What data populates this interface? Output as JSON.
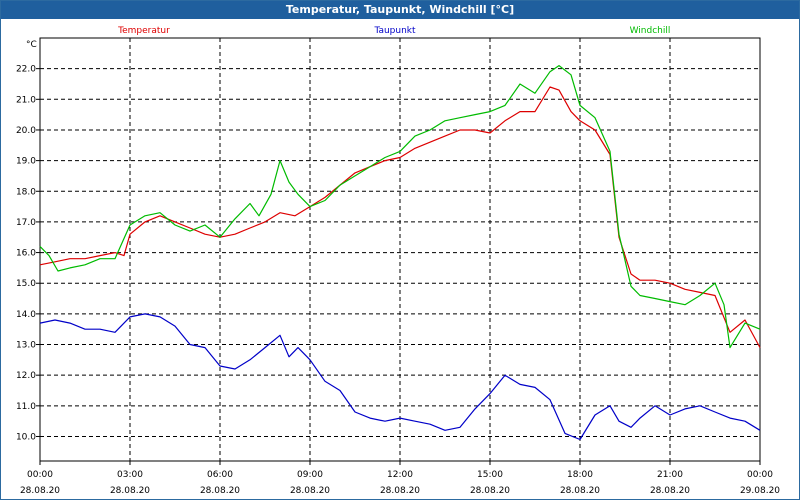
{
  "window": {
    "title": "Temperatur, Taupunkt, Windchill [°C]"
  },
  "chart_data": {
    "type": "line",
    "title": "Temperatur, Taupunkt, Windchill [°C]",
    "ylabel": "°C",
    "ylim": [
      9.2,
      23.0
    ],
    "y_ticks": [
      "10.0",
      "11.0",
      "12.0",
      "13.0",
      "14.0",
      "15.0",
      "16.0",
      "17.0",
      "18.0",
      "19.0",
      "20.0",
      "21.0",
      "22.0"
    ],
    "x_ticks": [
      {
        "time": "00:00",
        "date": "28.08.20"
      },
      {
        "time": "03:00",
        "date": "28.08.20"
      },
      {
        "time": "06:00",
        "date": "28.08.20"
      },
      {
        "time": "09:00",
        "date": "28.08.20"
      },
      {
        "time": "12:00",
        "date": "28.08.20"
      },
      {
        "time": "15:00",
        "date": "28.08.20"
      },
      {
        "time": "18:00",
        "date": "28.08.20"
      },
      {
        "time": "21:00",
        "date": "28.08.20"
      },
      {
        "time": "00:00",
        "date": "29.08.20"
      }
    ],
    "grid": true,
    "legend_position": "top",
    "series": [
      {
        "name": "Temperatur",
        "color": "#dd0000",
        "x": [
          0,
          0.5,
          1,
          1.5,
          2,
          2.5,
          2.8,
          3,
          3.5,
          4,
          4.5,
          5,
          5.5,
          6,
          6.5,
          7,
          7.5,
          8,
          8.5,
          9,
          9.5,
          10,
          10.5,
          11,
          11.5,
          12,
          12.5,
          13,
          13.5,
          14,
          14.5,
          15,
          15.5,
          16,
          16.5,
          17,
          17.3,
          17.7,
          18,
          18.5,
          19,
          19.3,
          19.7,
          20,
          20.5,
          21,
          21.5,
          22,
          22.5,
          23,
          23.5,
          24
        ],
        "values": [
          15.6,
          15.7,
          15.8,
          15.8,
          15.9,
          16.0,
          15.9,
          16.6,
          17.0,
          17.2,
          17.0,
          16.8,
          16.6,
          16.5,
          16.6,
          16.8,
          17.0,
          17.3,
          17.2,
          17.5,
          17.8,
          18.2,
          18.6,
          18.8,
          19.0,
          19.1,
          19.4,
          19.6,
          19.8,
          20.0,
          20.0,
          19.9,
          20.3,
          20.6,
          20.6,
          21.4,
          21.3,
          20.6,
          20.3,
          20.0,
          19.2,
          16.5,
          15.3,
          15.1,
          15.1,
          15.0,
          14.8,
          14.7,
          14.6,
          13.4,
          13.8,
          12.9
        ]
      },
      {
        "name": "Taupunkt",
        "color": "#0000c8",
        "x": [
          0,
          0.5,
          1,
          1.5,
          2,
          2.5,
          3,
          3.5,
          4,
          4.5,
          5,
          5.5,
          6,
          6.5,
          7,
          7.5,
          8,
          8.3,
          8.6,
          9,
          9.5,
          10,
          10.5,
          11,
          11.5,
          12,
          12.5,
          13,
          13.5,
          14,
          14.5,
          15,
          15.5,
          16,
          16.5,
          17,
          17.5,
          18,
          18.5,
          19,
          19.3,
          19.7,
          20,
          20.5,
          21,
          21.5,
          22,
          22.5,
          23,
          23.5,
          24
        ],
        "values": [
          13.7,
          13.8,
          13.7,
          13.5,
          13.5,
          13.4,
          13.9,
          14.0,
          13.9,
          13.6,
          13.0,
          12.9,
          12.3,
          12.2,
          12.5,
          12.9,
          13.3,
          12.6,
          12.9,
          12.5,
          11.8,
          11.5,
          10.8,
          10.6,
          10.5,
          10.6,
          10.5,
          10.4,
          10.2,
          10.3,
          10.9,
          11.4,
          12.0,
          11.7,
          11.6,
          11.2,
          10.1,
          9.9,
          10.7,
          11.0,
          10.5,
          10.3,
          10.6,
          11.0,
          10.7,
          10.9,
          11.0,
          10.8,
          10.6,
          10.5,
          10.2
        ]
      },
      {
        "name": "Windchill",
        "color": "#00bb00",
        "x": [
          0,
          0.3,
          0.6,
          1,
          1.5,
          2,
          2.5,
          3,
          3.5,
          4,
          4.5,
          5,
          5.5,
          6,
          6.5,
          7,
          7.3,
          7.7,
          8,
          8.3,
          8.6,
          9,
          9.5,
          10,
          10.5,
          11,
          11.5,
          12,
          12.5,
          13,
          13.5,
          14,
          14.5,
          15,
          15.5,
          16,
          16.5,
          17,
          17.3,
          17.7,
          18,
          18.5,
          19,
          19.3,
          19.7,
          20,
          20.5,
          21,
          21.5,
          22,
          22.5,
          22.8,
          23,
          23.5,
          24
        ],
        "values": [
          16.2,
          15.9,
          15.4,
          15.5,
          15.6,
          15.8,
          15.8,
          16.9,
          17.2,
          17.3,
          16.9,
          16.7,
          16.9,
          16.5,
          17.1,
          17.6,
          17.2,
          17.9,
          19.0,
          18.3,
          17.9,
          17.5,
          17.7,
          18.2,
          18.5,
          18.8,
          19.1,
          19.3,
          19.8,
          20.0,
          20.3,
          20.4,
          20.5,
          20.6,
          20.8,
          21.5,
          21.2,
          21.9,
          22.1,
          21.8,
          20.8,
          20.4,
          19.3,
          16.6,
          14.9,
          14.6,
          14.5,
          14.4,
          14.3,
          14.6,
          15.0,
          14.3,
          12.9,
          13.7,
          13.5
        ]
      }
    ]
  }
}
